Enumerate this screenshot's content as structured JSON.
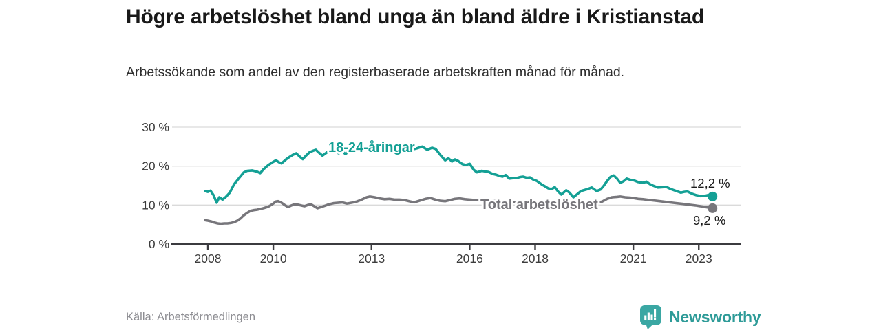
{
  "chart_data": {
    "type": "line",
    "title": "Högre arbetslöshet bland unga än bland äldre i Kristianstad",
    "subtitle": "Arbetssökande som andel av den registerbaserade arbetskraften månad för månad.",
    "unit": "%",
    "grid": "horizontal",
    "legend_position": "inline-series-labels",
    "x_axis": {
      "ticks": [
        2008,
        2010,
        2013,
        2016,
        2018,
        2021,
        2023
      ],
      "tick_labels": [
        "2008",
        "2010",
        "2013",
        "2016",
        "2018",
        "2021",
        "2023"
      ],
      "range_years": [
        2006.9,
        2024.3
      ]
    },
    "y_axis": {
      "ticks": [
        0,
        10,
        20,
        30
      ],
      "tick_labels": [
        "0 %",
        "10 %",
        "20 %",
        "30 %"
      ],
      "range": [
        0,
        30
      ]
    },
    "series": [
      {
        "name": "18-24-åringar",
        "color": "#14A095",
        "end_value": 12.2,
        "end_label": "12,2 %",
        "points": [
          [
            2007.92,
            13.6
          ],
          [
            2008.0,
            13.4
          ],
          [
            2008.08,
            13.7
          ],
          [
            2008.17,
            12.6
          ],
          [
            2008.27,
            10.6
          ],
          [
            2008.35,
            12.0
          ],
          [
            2008.45,
            11.4
          ],
          [
            2008.55,
            12.1
          ],
          [
            2008.67,
            13.2
          ],
          [
            2008.8,
            15.3
          ],
          [
            2008.95,
            16.9
          ],
          [
            2009.1,
            18.4
          ],
          [
            2009.2,
            18.8
          ],
          [
            2009.35,
            18.9
          ],
          [
            2009.5,
            18.6
          ],
          [
            2009.6,
            18.2
          ],
          [
            2009.7,
            19.2
          ],
          [
            2009.85,
            20.3
          ],
          [
            2010.0,
            21.1
          ],
          [
            2010.08,
            21.5
          ],
          [
            2010.17,
            21.0
          ],
          [
            2010.25,
            20.7
          ],
          [
            2010.4,
            21.8
          ],
          [
            2010.5,
            22.4
          ],
          [
            2010.6,
            22.9
          ],
          [
            2010.7,
            23.3
          ],
          [
            2010.8,
            22.5
          ],
          [
            2010.9,
            21.8
          ],
          [
            2011.0,
            22.7
          ],
          [
            2011.1,
            23.5
          ],
          [
            2011.2,
            23.9
          ],
          [
            2011.3,
            24.2
          ],
          [
            2011.4,
            23.4
          ],
          [
            2011.5,
            22.7
          ],
          [
            2011.6,
            23.3
          ],
          [
            2011.7,
            23.9
          ],
          [
            2011.8,
            24.3
          ],
          [
            2011.9,
            23.7
          ],
          [
            2012.0,
            23.3
          ],
          [
            2012.1,
            24.0
          ],
          [
            2012.2,
            23.1
          ],
          [
            2012.3,
            23.7
          ],
          [
            2012.4,
            24.5
          ],
          [
            2012.5,
            24.9
          ],
          [
            2012.6,
            24.1
          ],
          [
            2012.7,
            24.9
          ],
          [
            2012.8,
            24.5
          ],
          [
            2012.9,
            24.1
          ],
          [
            2013.0,
            24.4
          ],
          [
            2013.1,
            24.9
          ],
          [
            2013.2,
            25.2
          ],
          [
            2013.3,
            24.5
          ],
          [
            2013.4,
            23.9
          ],
          [
            2013.5,
            24.4
          ],
          [
            2013.6,
            23.8
          ],
          [
            2013.7,
            24.3
          ],
          [
            2013.8,
            24.0
          ],
          [
            2013.9,
            23.9
          ],
          [
            2014.0,
            24.3
          ],
          [
            2014.1,
            24.6
          ],
          [
            2014.27,
            24.3
          ],
          [
            2014.4,
            24.6
          ],
          [
            2014.55,
            25.0
          ],
          [
            2014.7,
            24.2
          ],
          [
            2014.85,
            24.7
          ],
          [
            2014.96,
            24.4
          ],
          [
            2015.1,
            22.9
          ],
          [
            2015.25,
            21.5
          ],
          [
            2015.35,
            22.0
          ],
          [
            2015.46,
            21.2
          ],
          [
            2015.55,
            21.7
          ],
          [
            2015.65,
            21.3
          ],
          [
            2015.78,
            20.5
          ],
          [
            2015.88,
            20.3
          ],
          [
            2016.0,
            20.6
          ],
          [
            2016.12,
            19.1
          ],
          [
            2016.22,
            18.4
          ],
          [
            2016.37,
            18.8
          ],
          [
            2016.5,
            18.6
          ],
          [
            2016.58,
            18.5
          ],
          [
            2016.7,
            18.0
          ],
          [
            2016.8,
            17.8
          ],
          [
            2016.9,
            17.5
          ],
          [
            2017.0,
            17.3
          ],
          [
            2017.1,
            17.7
          ],
          [
            2017.21,
            16.8
          ],
          [
            2017.32,
            16.9
          ],
          [
            2017.42,
            16.9
          ],
          [
            2017.55,
            17.2
          ],
          [
            2017.63,
            17.3
          ],
          [
            2017.75,
            17.0
          ],
          [
            2017.84,
            17.1
          ],
          [
            2017.95,
            16.5
          ],
          [
            2018.05,
            16.2
          ],
          [
            2018.2,
            15.3
          ],
          [
            2018.3,
            14.8
          ],
          [
            2018.4,
            14.3
          ],
          [
            2018.5,
            14.1
          ],
          [
            2018.6,
            14.6
          ],
          [
            2018.7,
            13.5
          ],
          [
            2018.8,
            12.7
          ],
          [
            2018.95,
            13.8
          ],
          [
            2019.05,
            13.2
          ],
          [
            2019.17,
            12.0
          ],
          [
            2019.3,
            12.9
          ],
          [
            2019.4,
            13.6
          ],
          [
            2019.6,
            14.1
          ],
          [
            2019.73,
            14.5
          ],
          [
            2019.88,
            13.6
          ],
          [
            2020.0,
            14.0
          ],
          [
            2020.1,
            15.0
          ],
          [
            2020.2,
            16.2
          ],
          [
            2020.3,
            17.2
          ],
          [
            2020.4,
            17.6
          ],
          [
            2020.5,
            16.8
          ],
          [
            2020.6,
            15.7
          ],
          [
            2020.7,
            16.1
          ],
          [
            2020.8,
            16.8
          ],
          [
            2020.9,
            16.5
          ],
          [
            2021.0,
            16.4
          ],
          [
            2021.15,
            15.9
          ],
          [
            2021.3,
            15.7
          ],
          [
            2021.4,
            16.0
          ],
          [
            2021.5,
            15.4
          ],
          [
            2021.6,
            15.0
          ],
          [
            2021.75,
            14.5
          ],
          [
            2021.9,
            14.6
          ],
          [
            2022.0,
            14.7
          ],
          [
            2022.15,
            14.1
          ],
          [
            2022.25,
            13.8
          ],
          [
            2022.45,
            13.2
          ],
          [
            2022.55,
            13.4
          ],
          [
            2022.65,
            13.5
          ],
          [
            2022.8,
            12.9
          ],
          [
            2022.9,
            12.6
          ],
          [
            2023.05,
            12.3
          ],
          [
            2023.2,
            12.4
          ],
          [
            2023.3,
            12.6
          ],
          [
            2023.42,
            12.2
          ]
        ]
      },
      {
        "name": "Total arbetslöshet",
        "color": "#77767B",
        "end_value": 9.2,
        "end_label": "9,2 %",
        "points": [
          [
            2007.92,
            6.1
          ],
          [
            2008.0,
            6.0
          ],
          [
            2008.1,
            5.8
          ],
          [
            2008.2,
            5.5
          ],
          [
            2008.3,
            5.3
          ],
          [
            2008.4,
            5.2
          ],
          [
            2008.5,
            5.3
          ],
          [
            2008.6,
            5.3
          ],
          [
            2008.7,
            5.4
          ],
          [
            2008.8,
            5.6
          ],
          [
            2008.9,
            6.0
          ],
          [
            2009.0,
            6.6
          ],
          [
            2009.1,
            7.4
          ],
          [
            2009.2,
            8.0
          ],
          [
            2009.3,
            8.5
          ],
          [
            2009.4,
            8.7
          ],
          [
            2009.5,
            8.8
          ],
          [
            2009.6,
            9.0
          ],
          [
            2009.7,
            9.2
          ],
          [
            2009.85,
            9.6
          ],
          [
            2010.0,
            10.4
          ],
          [
            2010.08,
            10.9
          ],
          [
            2010.15,
            11.0
          ],
          [
            2010.25,
            10.6
          ],
          [
            2010.35,
            10.0
          ],
          [
            2010.45,
            9.5
          ],
          [
            2010.55,
            9.9
          ],
          [
            2010.65,
            10.2
          ],
          [
            2010.75,
            10.1
          ],
          [
            2010.85,
            9.9
          ],
          [
            2010.95,
            9.7
          ],
          [
            2011.05,
            10.0
          ],
          [
            2011.15,
            10.2
          ],
          [
            2011.25,
            9.7
          ],
          [
            2011.35,
            9.2
          ],
          [
            2011.5,
            9.6
          ],
          [
            2011.6,
            9.9
          ],
          [
            2011.7,
            10.2
          ],
          [
            2011.85,
            10.5
          ],
          [
            2012.0,
            10.6
          ],
          [
            2012.1,
            10.7
          ],
          [
            2012.25,
            10.4
          ],
          [
            2012.4,
            10.6
          ],
          [
            2012.55,
            10.9
          ],
          [
            2012.7,
            11.4
          ],
          [
            2012.85,
            12.0
          ],
          [
            2012.95,
            12.2
          ],
          [
            2013.1,
            12.0
          ],
          [
            2013.25,
            11.7
          ],
          [
            2013.4,
            11.5
          ],
          [
            2013.55,
            11.6
          ],
          [
            2013.7,
            11.4
          ],
          [
            2013.85,
            11.4
          ],
          [
            2014.0,
            11.3
          ],
          [
            2014.15,
            11.0
          ],
          [
            2014.3,
            10.7
          ],
          [
            2014.5,
            11.2
          ],
          [
            2014.65,
            11.6
          ],
          [
            2014.8,
            11.8
          ],
          [
            2014.95,
            11.4
          ],
          [
            2015.1,
            11.1
          ],
          [
            2015.25,
            11.0
          ],
          [
            2015.4,
            11.3
          ],
          [
            2015.55,
            11.6
          ],
          [
            2015.7,
            11.7
          ],
          [
            2015.85,
            11.5
          ],
          [
            2016.0,
            11.4
          ],
          [
            2016.15,
            11.3
          ],
          [
            2016.3,
            11.3
          ],
          [
            2016.5,
            11.2
          ],
          [
            2016.7,
            11.1
          ],
          [
            2016.9,
            11.0
          ],
          [
            2017.1,
            10.9
          ],
          [
            2017.3,
            10.8
          ],
          [
            2017.5,
            10.7
          ],
          [
            2017.7,
            10.6
          ],
          [
            2017.9,
            10.5
          ],
          [
            2018.1,
            10.4
          ],
          [
            2018.3,
            10.3
          ],
          [
            2018.5,
            10.2
          ],
          [
            2018.7,
            10.2
          ],
          [
            2018.9,
            10.1
          ],
          [
            2019.1,
            10.1
          ],
          [
            2019.3,
            10.2
          ],
          [
            2019.5,
            10.3
          ],
          [
            2019.7,
            10.4
          ],
          [
            2019.9,
            10.6
          ],
          [
            2020.05,
            10.9
          ],
          [
            2020.2,
            11.6
          ],
          [
            2020.35,
            12.0
          ],
          [
            2020.5,
            12.1
          ],
          [
            2020.6,
            12.2
          ],
          [
            2020.75,
            12.0
          ],
          [
            2020.9,
            11.9
          ],
          [
            2021.0,
            11.8
          ],
          [
            2021.15,
            11.6
          ],
          [
            2021.3,
            11.5
          ],
          [
            2021.5,
            11.3
          ],
          [
            2021.7,
            11.1
          ],
          [
            2021.9,
            10.9
          ],
          [
            2022.1,
            10.7
          ],
          [
            2022.3,
            10.5
          ],
          [
            2022.5,
            10.3
          ],
          [
            2022.7,
            10.1
          ],
          [
            2022.9,
            9.9
          ],
          [
            2023.05,
            9.7
          ],
          [
            2023.2,
            9.5
          ],
          [
            2023.35,
            9.3
          ],
          [
            2023.42,
            9.2
          ]
        ]
      }
    ]
  },
  "footer": {
    "source": "Källa: Arbetsförmedlingen",
    "brand": "Newsworthy",
    "logo_icon": "bar-chart-speech-bubble-icon"
  },
  "colors": {
    "accent_teal": "#14A095",
    "line_gray": "#77767B",
    "brand_teal": "#3AA7A3",
    "brand_text_teal": "#2E9B98",
    "grid": "#DADADA",
    "axis": "#3B3B3F",
    "text_dark": "#1B1B1B",
    "text_muted": "#8D8D92"
  }
}
